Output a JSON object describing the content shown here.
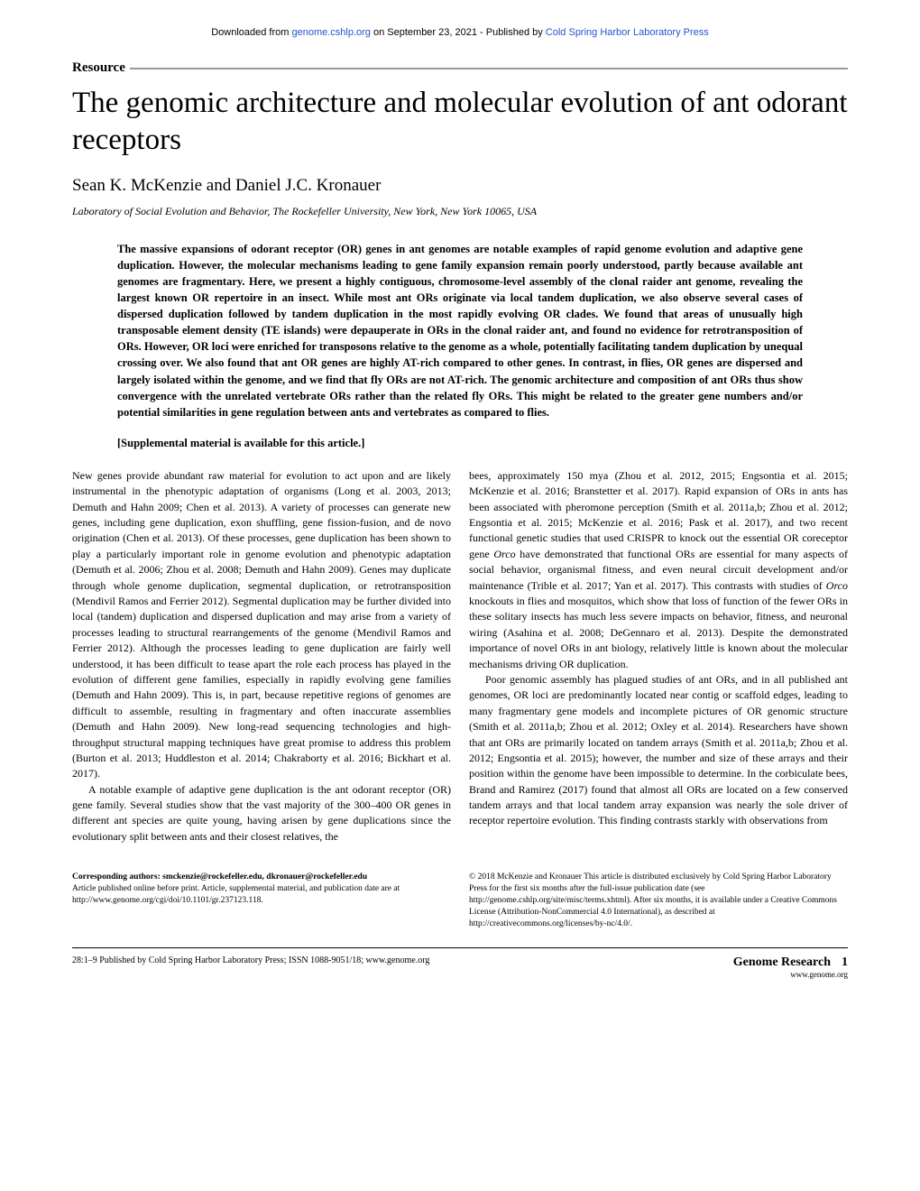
{
  "banner": {
    "prefix": "Downloaded from ",
    "link1_text": "genome.cshlp.org",
    "middle": " on September 23, 2021 - Published by ",
    "link2_text": "Cold Spring Harbor Laboratory Press"
  },
  "section_label": "Resource",
  "title": "The genomic architecture and molecular evolution of ant odorant receptors",
  "authors": "Sean K. McKenzie and Daniel J.C. Kronauer",
  "affiliation": "Laboratory of Social Evolution and Behavior, The Rockefeller University, New York, New York 10065, USA",
  "abstract": "The massive expansions of odorant receptor (OR) genes in ant genomes are notable examples of rapid genome evolution and adaptive gene duplication. However, the molecular mechanisms leading to gene family expansion remain poorly understood, partly because available ant genomes are fragmentary. Here, we present a highly contiguous, chromosome-level assembly of the clonal raider ant genome, revealing the largest known OR repertoire in an insect. While most ant ORs originate via local tandem duplication, we also observe several cases of dispersed duplication followed by tandem duplication in the most rapidly evolving OR clades. We found that areas of unusually high transposable element density (TE islands) were depauperate in ORs in the clonal raider ant, and found no evidence for retrotransposition of ORs. However, OR loci were enriched for transposons relative to the genome as a whole, potentially facilitating tandem duplication by unequal crossing over. We also found that ant OR genes are highly AT-rich compared to other genes. In contrast, in flies, OR genes are dispersed and largely isolated within the genome, and we find that fly ORs are not AT-rich. The genomic architecture and composition of ant ORs thus show convergence with the unrelated vertebrate ORs rather than the related fly ORs. This might be related to the greater gene numbers and/or potential similarities in gene regulation between ants and vertebrates as compared to flies.",
  "supplemental": "[Supplemental material is available for this article.]",
  "body": {
    "col1_p1": "New genes provide abundant raw material for evolution to act upon and are likely instrumental in the phenotypic adaptation of organisms (Long et al. 2003, 2013; Demuth and Hahn 2009; Chen et al. 2013). A variety of processes can generate new genes, including gene duplication, exon shuffling, gene fission-fusion, and de novo origination (Chen et al. 2013). Of these processes, gene duplication has been shown to play a particularly important role in genome evolution and phenotypic adaptation (Demuth et al. 2006; Zhou et al. 2008; Demuth and Hahn 2009). Genes may duplicate through whole genome duplication, segmental duplication, or retrotransposition (Mendivil Ramos and Ferrier 2012). Segmental duplication may be further divided into local (tandem) duplication and dispersed duplication and may arise from a variety of processes leading to structural rearrangements of the genome (Mendivil Ramos and Ferrier 2012). Although the processes leading to gene duplication are fairly well understood, it has been difficult to tease apart the role each process has played in the evolution of different gene families, especially in rapidly evolving gene families (Demuth and Hahn 2009). This is, in part, because repetitive regions of genomes are difficult to assemble, resulting in fragmentary and often inaccurate assemblies (Demuth and Hahn 2009). New long-read sequencing technologies and high-throughput structural mapping techniques have great promise to address this problem (Burton et al. 2013; Huddleston et al. 2014; Chakraborty et al. 2016; Bickhart et al. 2017).",
    "col1_p2": "A notable example of adaptive gene duplication is the ant odorant receptor (OR) gene family. Several studies show that the vast majority of the 300–400 OR genes in different ant species are quite young, having arisen by gene duplications since the evolutionary split between ants and their closest relatives, the",
    "col2_p1_a": "bees, approximately 150 mya (Zhou et al. 2012, 2015; Engsontia et al. 2015; McKenzie et al. 2016; Branstetter et al. 2017). Rapid expansion of ORs in ants has been associated with pheromone perception (Smith et al. 2011a,b; Zhou et al. 2012; Engsontia et al. 2015; McKenzie et al. 2016; Pask et al. 2017), and two recent functional genetic studies that used CRISPR to knock out the essential OR coreceptor gene ",
    "col2_p1_orco1": "Orco",
    "col2_p1_b": " have demonstrated that functional ORs are essential for many aspects of social behavior, organismal fitness, and even neural circuit development and/or maintenance (Trible et al. 2017; Yan et al. 2017). This contrasts with studies of ",
    "col2_p1_orco2": "Orco",
    "col2_p1_c": " knockouts in flies and mosquitos, which show that loss of function of the fewer ORs in these solitary insects has much less severe impacts on behavior, fitness, and neuronal wiring (Asahina et al. 2008; DeGennaro et al. 2013). Despite the demonstrated importance of novel ORs in ant biology, relatively little is known about the molecular mechanisms driving OR duplication.",
    "col2_p2": "Poor genomic assembly has plagued studies of ant ORs, and in all published ant genomes, OR loci are predominantly located near contig or scaffold edges, leading to many fragmentary gene models and incomplete pictures of OR genomic structure (Smith et al. 2011a,b; Zhou et al. 2012; Oxley et al. 2014). Researchers have shown that ant ORs are primarily located on tandem arrays (Smith et al. 2011a,b; Zhou et al. 2012; Engsontia et al. 2015); however, the number and size of these arrays and their position within the genome have been impossible to determine. In the corbiculate bees, Brand and Ramirez (2017) found that almost all ORs are located on a few conserved tandem arrays and that local tandem array expansion was nearly the sole driver of receptor repertoire evolution. This finding contrasts starkly with observations from"
  },
  "footer": {
    "corresponding_label": "Corresponding authors: ",
    "emails": "smckenzie@rockefeller.edu, dkronauer@rockefeller.edu",
    "article_note": "Article published online before print. Article, supplemental material, and publication date are at http://www.genome.org/cgi/doi/10.1101/gr.237123.118.",
    "copyright": "© 2018 McKenzie and Kronauer    This article is distributed exclusively by Cold Spring Harbor Laboratory Press for the first six months after the full-issue publication date (see http://genome.cshlp.org/site/misc/terms.xhtml). After six months, it is available under a Creative Commons License (Attribution-NonCommercial 4.0 International), as described at http://creativecommons.org/licenses/by-nc/4.0/."
  },
  "bottom": {
    "left": "28:1–9 Published by Cold Spring Harbor Laboratory Press; ISSN 1088-9051/18; www.genome.org",
    "journal": "Genome Research",
    "url": "www.genome.org",
    "page": "1"
  }
}
